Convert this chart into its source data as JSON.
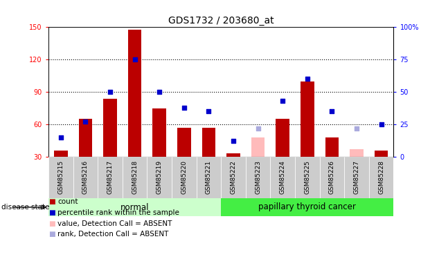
{
  "title": "GDS1732 / 203680_at",
  "samples": [
    "GSM85215",
    "GSM85216",
    "GSM85217",
    "GSM85218",
    "GSM85219",
    "GSM85220",
    "GSM85221",
    "GSM85222",
    "GSM85223",
    "GSM85224",
    "GSM85225",
    "GSM85226",
    "GSM85227",
    "GSM85228"
  ],
  "bar_values": [
    36,
    65,
    84,
    148,
    75,
    57,
    57,
    33,
    48,
    65,
    100,
    48,
    37,
    36
  ],
  "bar_absent": [
    false,
    false,
    false,
    false,
    false,
    false,
    false,
    false,
    true,
    false,
    false,
    false,
    true,
    false
  ],
  "dot_values_pct": [
    15,
    27,
    50,
    75,
    50,
    38,
    35,
    12,
    22,
    43,
    60,
    35,
    22,
    25
  ],
  "dot_absent": [
    false,
    false,
    false,
    false,
    false,
    false,
    false,
    false,
    true,
    false,
    false,
    false,
    true,
    false
  ],
  "ylim_left": [
    30,
    150
  ],
  "ylim_right": [
    0,
    100
  ],
  "yticks_left": [
    30,
    60,
    90,
    120,
    150
  ],
  "yticks_right": [
    0,
    25,
    50,
    75,
    100
  ],
  "ytick_labels_left": [
    "30",
    "60",
    "90",
    "120",
    "150"
  ],
  "ytick_labels_right": [
    "0",
    "25",
    "50",
    "75",
    "100%"
  ],
  "normal_label": "normal",
  "cancer_label": "papillary thyroid cancer",
  "disease_state_label": "disease state",
  "bar_color_normal": "#bb0000",
  "bar_color_absent": "#ffbbbb",
  "dot_color_normal": "#0000cc",
  "dot_color_absent": "#aaaadd",
  "normal_bg": "#ccffcc",
  "cancer_bg": "#44ee44",
  "tick_label_bg": "#cccccc",
  "legend_items": [
    "count",
    "percentile rank within the sample",
    "value, Detection Call = ABSENT",
    "rank, Detection Call = ABSENT"
  ],
  "legend_colors": [
    "#bb0000",
    "#0000cc",
    "#ffbbbb",
    "#aaaadd"
  ],
  "gridline_color": "#000000",
  "title_fontsize": 10,
  "tick_fontsize": 7
}
